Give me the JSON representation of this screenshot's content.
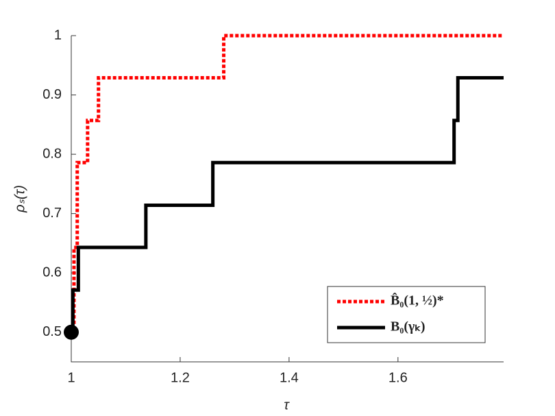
{
  "chart_data": {
    "type": "step-line",
    "xlabel": "τ",
    "ylabel": "ρₛ(τ)",
    "xlim": [
      1,
      1.794
    ],
    "ylim": [
      0.45,
      1
    ],
    "xticks": [
      1,
      1.2,
      1.4,
      1.6
    ],
    "yticks": [
      0.5,
      0.6,
      0.7,
      0.8,
      0.9,
      1
    ],
    "legend": "lower right",
    "series": [
      {
        "name": "B̂₀(1, ½)*",
        "color": "#ff0000",
        "style": "dotted",
        "x": [
          1,
          1.005,
          1.011,
          1.03,
          1.05,
          1.28,
          1.794
        ],
        "values": [
          0.5,
          0.643,
          0.786,
          0.857,
          0.929,
          1,
          1
        ]
      },
      {
        "name": "B₀(γₖ)",
        "color": "#000000",
        "style": "solid",
        "x": [
          1,
          1.003,
          1.013,
          1.137,
          1.26,
          1.703,
          1.71,
          1.794
        ],
        "values": [
          0.5,
          0.571,
          0.643,
          0.714,
          0.786,
          0.857,
          0.929,
          0.929
        ]
      }
    ]
  }
}
